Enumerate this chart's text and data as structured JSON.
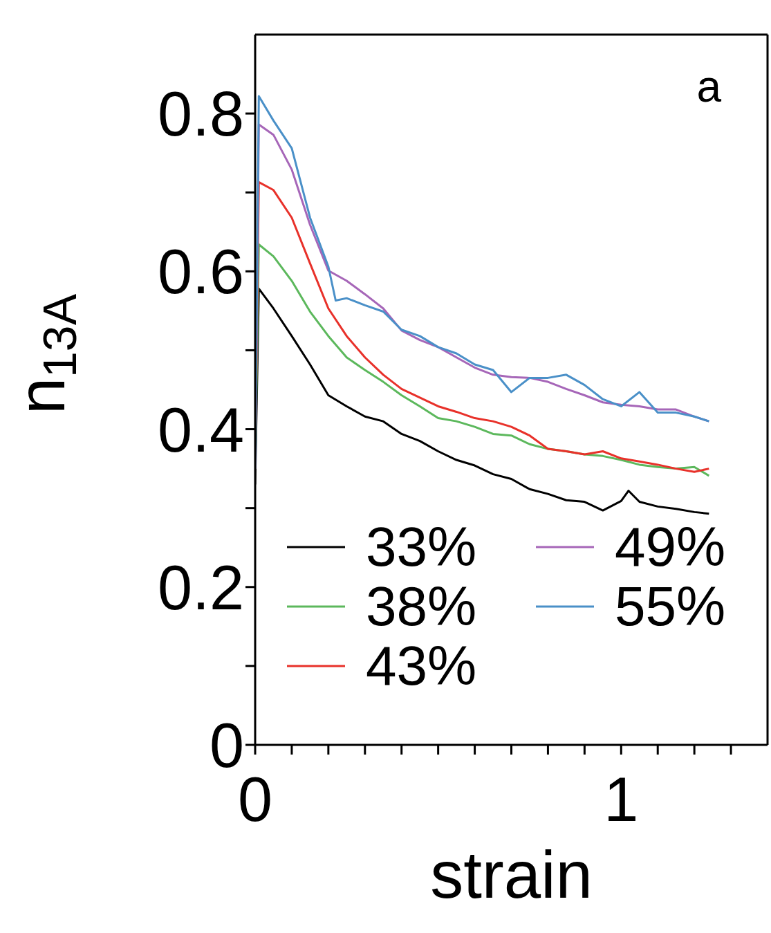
{
  "chart_data": {
    "type": "line",
    "xlabel": "strain",
    "ylabel": "n$_{13A}$",
    "annotations": [
      "a"
    ],
    "xlim": [
      0,
      1.4
    ],
    "xticks": [
      0,
      {
        "value": 0.1,
        "label": null
      },
      {
        "value": 0.2,
        "label": null
      },
      {
        "value": 0.3,
        "label": null
      },
      {
        "value": 0.4,
        "label": null
      },
      {
        "value": 0.5,
        "label": null
      },
      {
        "value": 0.6,
        "label": null
      },
      {
        "value": 0.7,
        "label": null
      },
      {
        "value": 0.8,
        "label": null
      },
      {
        "value": 0.9,
        "label": null
      },
      1,
      {
        "value": 1.1,
        "label": null
      },
      {
        "value": 1.2,
        "label": null
      },
      {
        "value": 1.3,
        "label": null
      }
    ],
    "ylim": [
      0,
      0.9
    ],
    "yticks": [
      0,
      {
        "value": 0.1,
        "label": null
      },
      0.2,
      {
        "value": 0.3,
        "label": null
      },
      0.4,
      {
        "value": 0.5,
        "label": null
      },
      0.6,
      {
        "value": 0.7,
        "label": null
      },
      0.8
    ],
    "legend": "bottom right",
    "grid": false,
    "marker": "none",
    "line_style": "solid",
    "series": [
      {
        "name": "33%",
        "color": "#000000",
        "x": [
          0,
          0.01,
          0.05,
          0.1,
          0.15,
          0.2,
          0.25,
          0.3,
          0.35,
          0.4,
          0.45,
          0.5,
          0.55,
          0.6,
          0.65,
          0.7,
          0.75,
          0.8,
          0.85,
          0.9,
          0.95,
          1.0,
          1.02,
          1.05,
          1.1,
          1.15,
          1.2,
          1.24
        ],
        "values": [
          0.33,
          0.578,
          0.553,
          0.518,
          0.482,
          0.443,
          0.429,
          0.416,
          0.41,
          0.394,
          0.385,
          0.372,
          0.361,
          0.354,
          0.343,
          0.337,
          0.324,
          0.318,
          0.31,
          0.308,
          0.297,
          0.309,
          0.322,
          0.308,
          0.302,
          0.299,
          0.295,
          0.293
        ]
      },
      {
        "name": "38%",
        "color": "#5cb85c",
        "x": [
          0,
          0.01,
          0.05,
          0.1,
          0.15,
          0.2,
          0.25,
          0.3,
          0.35,
          0.4,
          0.45,
          0.5,
          0.55,
          0.6,
          0.65,
          0.7,
          0.75,
          0.8,
          0.85,
          0.9,
          0.95,
          1.0,
          1.05,
          1.1,
          1.15,
          1.2,
          1.24
        ],
        "values": [
          0.35,
          0.634,
          0.619,
          0.588,
          0.549,
          0.518,
          0.491,
          0.475,
          0.46,
          0.443,
          0.429,
          0.414,
          0.41,
          0.403,
          0.394,
          0.392,
          0.381,
          0.375,
          0.372,
          0.368,
          0.366,
          0.361,
          0.355,
          0.352,
          0.35,
          0.352,
          0.341
        ]
      },
      {
        "name": "43%",
        "color": "#e8312a",
        "x": [
          0,
          0.01,
          0.05,
          0.1,
          0.15,
          0.2,
          0.25,
          0.3,
          0.35,
          0.4,
          0.45,
          0.5,
          0.55,
          0.6,
          0.65,
          0.7,
          0.75,
          0.8,
          0.85,
          0.9,
          0.95,
          1.0,
          1.05,
          1.1,
          1.15,
          1.2,
          1.24
        ],
        "values": [
          0.35,
          0.713,
          0.703,
          0.668,
          0.61,
          0.553,
          0.518,
          0.491,
          0.469,
          0.451,
          0.44,
          0.429,
          0.422,
          0.414,
          0.41,
          0.403,
          0.392,
          0.375,
          0.372,
          0.368,
          0.372,
          0.363,
          0.359,
          0.355,
          0.35,
          0.346,
          0.35
        ]
      },
      {
        "name": "49%",
        "color": "#a666b8",
        "x": [
          0,
          0.01,
          0.05,
          0.1,
          0.15,
          0.2,
          0.25,
          0.3,
          0.35,
          0.4,
          0.45,
          0.5,
          0.55,
          0.6,
          0.65,
          0.7,
          0.75,
          0.8,
          0.85,
          0.9,
          0.95,
          1.0,
          1.05,
          1.1,
          1.15,
          1.2,
          1.24
        ],
        "values": [
          0.35,
          0.786,
          0.773,
          0.729,
          0.659,
          0.601,
          0.588,
          0.571,
          0.553,
          0.525,
          0.513,
          0.504,
          0.491,
          0.478,
          0.469,
          0.466,
          0.465,
          0.46,
          0.451,
          0.443,
          0.434,
          0.431,
          0.429,
          0.425,
          0.425,
          0.416,
          0.41
        ]
      },
      {
        "name": "55%",
        "color": "#4a90c8",
        "x": [
          0,
          0.01,
          0.05,
          0.1,
          0.15,
          0.2,
          0.22,
          0.25,
          0.3,
          0.35,
          0.4,
          0.45,
          0.5,
          0.55,
          0.6,
          0.65,
          0.7,
          0.75,
          0.8,
          0.85,
          0.9,
          0.95,
          1.0,
          1.05,
          1.1,
          1.15,
          1.2,
          1.24
        ],
        "values": [
          0.35,
          0.822,
          0.791,
          0.756,
          0.668,
          0.606,
          0.563,
          0.566,
          0.557,
          0.549,
          0.526,
          0.518,
          0.504,
          0.496,
          0.482,
          0.475,
          0.447,
          0.465,
          0.465,
          0.469,
          0.456,
          0.438,
          0.429,
          0.447,
          0.421,
          0.421,
          0.416,
          0.41
        ]
      }
    ]
  }
}
